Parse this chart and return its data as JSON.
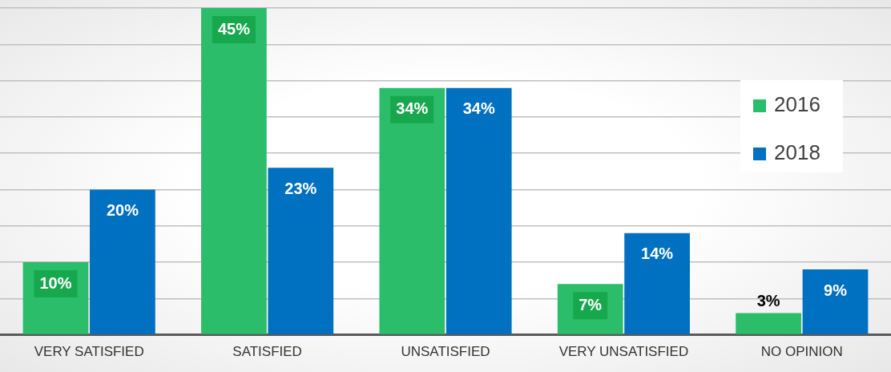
{
  "chart_data": {
    "type": "bar",
    "categories": [
      "VERY SATISFIED",
      "SATISFIED",
      "UNSATISFIED",
      "VERY UNSATISFIED",
      "NO OPINION"
    ],
    "series": [
      {
        "name": "2016",
        "color": "#2bbd6a",
        "values": [
          10,
          45,
          34,
          7,
          3
        ],
        "value_labels": [
          "10%",
          "45%",
          "34%",
          "7%",
          "3%"
        ]
      },
      {
        "name": "2018",
        "color": "#0070c0",
        "values": [
          20,
          23,
          34,
          14,
          9
        ],
        "value_labels": [
          "20%",
          "23%",
          "34%",
          "14%",
          "9%"
        ]
      }
    ],
    "tick_labels": "x",
    "grid": "y",
    "legend": "right"
  }
}
